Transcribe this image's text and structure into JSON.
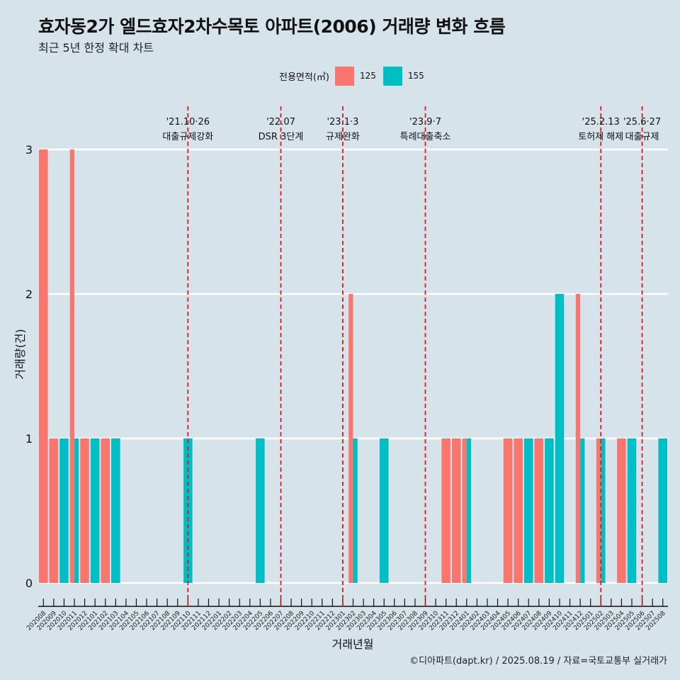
{
  "title": "효자동2가 엘드효자2차수목토 아파트(2006) 거래량 변화 흐름",
  "subtitle": "최근 5년 한정 확대 차트",
  "legend": {
    "title": "전용면적(㎡)",
    "items": [
      {
        "label": "125",
        "color": "#f8766d"
      },
      {
        "label": "155",
        "color": "#00bfc4"
      }
    ]
  },
  "caption": "©디아파트(dapt.kr) / 2025.08.19 / 자료=국토교통부 실거래가",
  "chart_data": {
    "type": "bar",
    "title": "효자동2가 엘드효자2차수목토 아파트(2006) 거래량 변화 흐름",
    "subtitle": "최근 5년 한정 확대 차트",
    "xlabel": "거래년월",
    "ylabel": "거래량(건)",
    "ylim": [
      0,
      3
    ],
    "yticks": [
      0,
      1,
      2,
      3
    ],
    "grid": true,
    "legend_position": "top",
    "categories": [
      "202008",
      "202009",
      "202010",
      "202011",
      "202012",
      "202101",
      "202102",
      "202103",
      "202104",
      "202105",
      "202106",
      "202107",
      "202108",
      "202109",
      "202110",
      "202111",
      "202112",
      "202201",
      "202202",
      "202203",
      "202204",
      "202205",
      "202206",
      "202207",
      "202208",
      "202209",
      "202210",
      "202211",
      "202212",
      "202301",
      "202302",
      "202303",
      "202304",
      "202305",
      "202306",
      "202307",
      "202308",
      "202309",
      "202310",
      "202311",
      "202312",
      "202401",
      "202402",
      "202403",
      "202404",
      "202405",
      "202406",
      "202407",
      "202408",
      "202409",
      "202410",
      "202411",
      "202412",
      "202501",
      "202502",
      "202503",
      "202504",
      "202505",
      "202506",
      "202507",
      "202508"
    ],
    "series": [
      {
        "name": "125",
        "color": "#f8766d",
        "values": [
          3,
          1,
          0,
          3,
          1,
          0,
          1,
          0,
          0,
          0,
          0,
          0,
          0,
          0,
          0,
          0,
          0,
          0,
          0,
          0,
          0,
          0,
          0,
          0,
          0,
          0,
          0,
          0,
          0,
          0,
          2,
          0,
          0,
          0,
          0,
          0,
          0,
          0,
          0,
          1,
          1,
          1,
          0,
          0,
          0,
          1,
          1,
          0,
          1,
          0,
          0,
          0,
          2,
          0,
          1,
          0,
          1,
          0,
          0,
          0,
          0
        ]
      },
      {
        "name": "155",
        "color": "#00bfc4",
        "values": [
          0,
          0,
          1,
          1,
          0,
          1,
          0,
          1,
          0,
          0,
          0,
          0,
          0,
          0,
          1,
          0,
          0,
          0,
          0,
          0,
          0,
          1,
          0,
          0,
          0,
          0,
          0,
          0,
          0,
          0,
          1,
          0,
          0,
          1,
          0,
          0,
          0,
          0,
          0,
          0,
          0,
          1,
          0,
          0,
          0,
          0,
          0,
          1,
          0,
          1,
          2,
          0,
          1,
          0,
          1,
          0,
          0,
          1,
          0,
          0,
          1
        ]
      }
    ],
    "annotations": [
      {
        "date": "'21.10·26",
        "label": "대출규제강화",
        "month": "202110"
      },
      {
        "date": "'22.07",
        "label": "DSR 3단계",
        "month": "202207"
      },
      {
        "date": "'23.1·3",
        "label": "규제완화",
        "month": "202301"
      },
      {
        "date": "'23.9·7",
        "label": "특례대출축소",
        "month": "202309"
      },
      {
        "date": "'25.2.13",
        "label": "토허제 해제",
        "month": "202502"
      },
      {
        "date": "'25.6·27",
        "label": "대출규제",
        "month": "202506"
      }
    ]
  }
}
